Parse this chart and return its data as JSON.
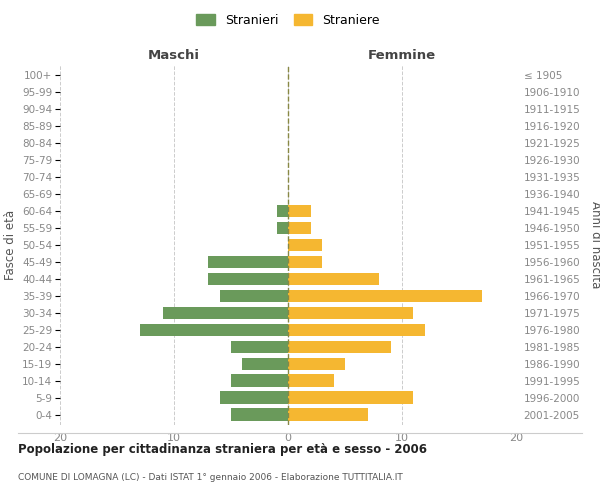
{
  "age_groups": [
    "0-4",
    "5-9",
    "10-14",
    "15-19",
    "20-24",
    "25-29",
    "30-34",
    "35-39",
    "40-44",
    "45-49",
    "50-54",
    "55-59",
    "60-64",
    "65-69",
    "70-74",
    "75-79",
    "80-84",
    "85-89",
    "90-94",
    "95-99",
    "100+"
  ],
  "birth_years": [
    "2001-2005",
    "1996-2000",
    "1991-1995",
    "1986-1990",
    "1981-1985",
    "1976-1980",
    "1971-1975",
    "1966-1970",
    "1961-1965",
    "1956-1960",
    "1951-1955",
    "1946-1950",
    "1941-1945",
    "1936-1940",
    "1931-1935",
    "1926-1930",
    "1921-1925",
    "1916-1920",
    "1911-1915",
    "1906-1910",
    "≤ 1905"
  ],
  "maschi": [
    5,
    6,
    5,
    4,
    5,
    13,
    11,
    6,
    7,
    7,
    0,
    1,
    1,
    0,
    0,
    0,
    0,
    0,
    0,
    0,
    0
  ],
  "femmine": [
    7,
    11,
    4,
    5,
    9,
    12,
    11,
    17,
    8,
    3,
    3,
    2,
    2,
    0,
    0,
    0,
    0,
    0,
    0,
    0,
    0
  ],
  "maschi_color": "#6a9a5b",
  "femmine_color": "#f5b731",
  "title": "Popolazione per cittadinanza straniera per età e sesso - 2006",
  "subtitle": "COMUNE DI LOMAGNA (LC) - Dati ISTAT 1° gennaio 2006 - Elaborazione TUTTITALIA.IT",
  "xlabel_left": "Maschi",
  "xlabel_right": "Femmine",
  "ylabel_left": "Fasce di età",
  "ylabel_right": "Anni di nascita",
  "legend_stranieri": "Stranieri",
  "legend_straniere": "Straniere",
  "xlim": 20,
  "bg_color": "#ffffff",
  "grid_color": "#cccccc",
  "bar_height": 0.75,
  "dpi": 100,
  "figsize": [
    6.0,
    5.0
  ]
}
